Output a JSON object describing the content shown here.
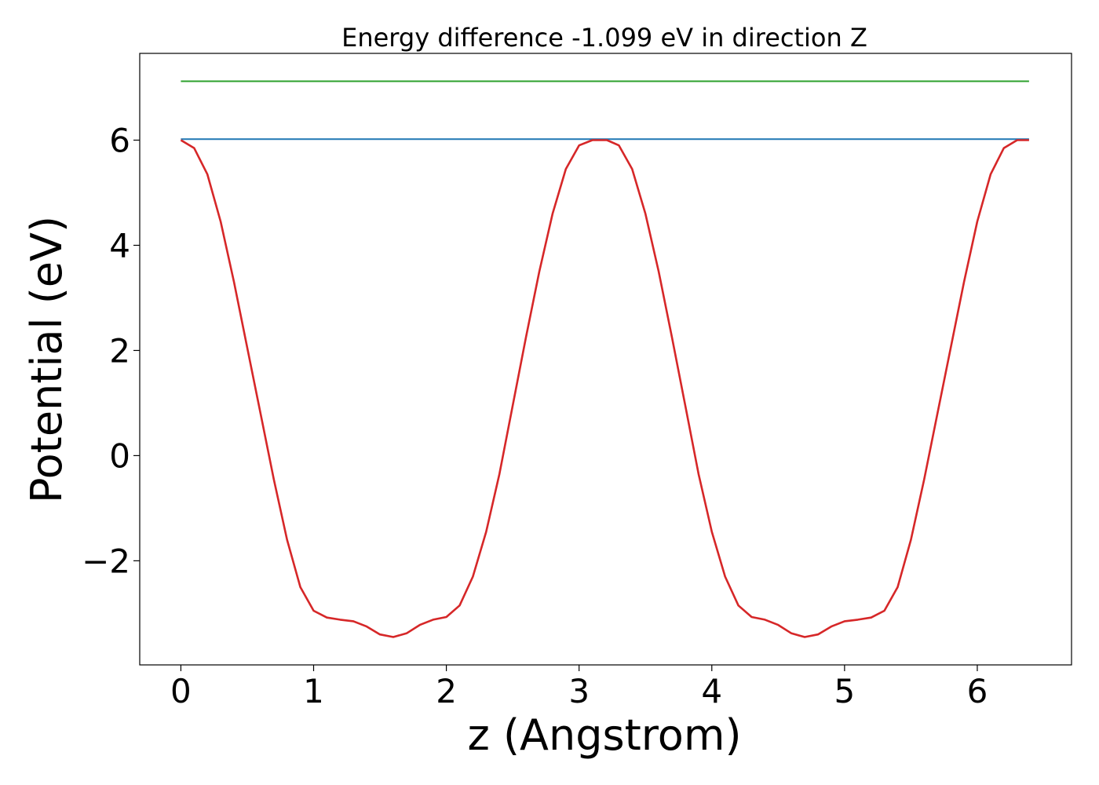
{
  "chart_data": {
    "type": "line",
    "title": "Energy difference -1.099 eV in direction Z",
    "xlabel": "z (Angstrom)",
    "ylabel": "Potential (eV)",
    "xlim": [
      -0.31,
      6.71
    ],
    "ylim": [
      -3.98,
      7.65
    ],
    "x_ticks": [
      0,
      1,
      2,
      3,
      4,
      5,
      6
    ],
    "x_tick_labels": [
      "0",
      "1",
      "2",
      "3",
      "4",
      "5",
      "6"
    ],
    "y_ticks": [
      -2,
      0,
      2,
      4,
      6
    ],
    "y_tick_labels": [
      "−2",
      "0",
      "2",
      "4",
      "6"
    ],
    "grid": false,
    "series": [
      {
        "color": "#d62728",
        "x": [
          0,
          0.1,
          0.2,
          0.3,
          0.4,
          0.5,
          0.6,
          0.7,
          0.8,
          0.9,
          1.0,
          1.1,
          1.2,
          1.3,
          1.4,
          1.5,
          1.6,
          1.7,
          1.8,
          1.9,
          2.0,
          2.1,
          2.2,
          2.3,
          2.4,
          2.5,
          2.6,
          2.7,
          2.8,
          2.9,
          3.0,
          3.1,
          3.21,
          3.3,
          3.4,
          3.5,
          3.6,
          3.7,
          3.8,
          3.9,
          4.0,
          4.1,
          4.2,
          4.3,
          4.4,
          4.5,
          4.6,
          4.7,
          4.8,
          4.9,
          5.0,
          5.1,
          5.2,
          5.3,
          5.4,
          5.5,
          5.6,
          5.7,
          5.8,
          5.9,
          6.0,
          6.1,
          6.2,
          6.3,
          6.39
        ],
        "y": [
          6.0,
          5.85,
          5.35,
          4.45,
          3.3,
          2.05,
          0.8,
          -0.45,
          -1.6,
          -2.5,
          -2.95,
          -3.08,
          -3.12,
          -3.15,
          -3.25,
          -3.4,
          -3.45,
          -3.38,
          -3.22,
          -3.12,
          -3.07,
          -2.85,
          -2.3,
          -1.45,
          -0.35,
          0.95,
          2.25,
          3.5,
          4.6,
          5.45,
          5.9,
          6.0,
          6.0,
          5.9,
          5.45,
          4.6,
          3.5,
          2.25,
          0.95,
          -0.35,
          -1.45,
          -2.3,
          -2.85,
          -3.07,
          -3.12,
          -3.22,
          -3.38,
          -3.45,
          -3.4,
          -3.25,
          -3.15,
          -3.12,
          -3.08,
          -2.95,
          -2.5,
          -1.6,
          -0.45,
          0.8,
          2.05,
          3.3,
          4.45,
          5.35,
          5.85,
          6.0,
          6.0
        ]
      },
      {
        "color": "#1f77b4",
        "x": [
          0,
          6.39
        ],
        "y": [
          6.02,
          6.02
        ]
      },
      {
        "color": "#2ca02c",
        "x": [
          0,
          6.39
        ],
        "y": [
          7.12,
          7.12
        ]
      }
    ]
  }
}
